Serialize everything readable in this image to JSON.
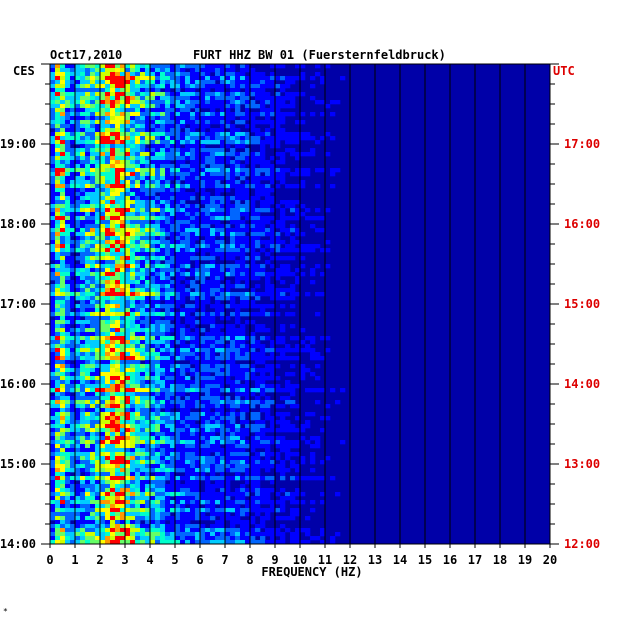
{
  "header": {
    "date": "Oct17,2010",
    "station": "FURT HHZ BW 01 (Fuersternfeldbruck)",
    "left_zone": "CES",
    "right_zone": "UTC"
  },
  "footnote": "*",
  "colors": {
    "background": "#0000a8",
    "grid": "#000000",
    "utc_labels": "#dd0000",
    "palette": [
      "#00009c",
      "#0000ff",
      "#0066ff",
      "#00ccff",
      "#00ffcc",
      "#66ff66",
      "#ccff00",
      "#ffff00",
      "#ff9900",
      "#ff0000"
    ]
  },
  "chart_data": {
    "type": "heatmap",
    "title": "FURT HHZ BW 01 (Fuersternfeldbruck)",
    "xlabel": "FREQUENCY (HZ)",
    "ylabel": "",
    "xlim": [
      0,
      20
    ],
    "x_ticks": [
      "0",
      "1",
      "2",
      "3",
      "4",
      "5",
      "6",
      "7",
      "8",
      "9",
      "10",
      "11",
      "12",
      "13",
      "14",
      "15",
      "16",
      "17",
      "18",
      "19",
      "20"
    ],
    "y_ticks_left": [
      "19:00",
      "18:00",
      "17:00",
      "16:00",
      "15:00",
      "14:00"
    ],
    "y_ticks_right": [
      "17:00",
      "16:00",
      "15:00",
      "14:00",
      "13:00",
      "12:00"
    ],
    "y_range_utc_hours": [
      12,
      18
    ],
    "grid": true,
    "energy_bands": [
      {
        "name": "band-0.4hz",
        "center_hz": 0.4,
        "width_hz": 0.3,
        "strength": 0.95
      },
      {
        "name": "band-1.5hz",
        "center_hz": 1.5,
        "width_hz": 0.8,
        "strength": 0.55
      },
      {
        "name": "band-2.7hz",
        "center_hz": 2.7,
        "width_hz": 0.6,
        "strength": 0.9
      },
      {
        "name": "band-3.5hz",
        "center_hz": 3.5,
        "width_hz": 1.5,
        "strength": 0.5
      },
      {
        "name": "band-6.5hz",
        "center_hz": 6.5,
        "width_hz": 2.5,
        "strength": 0.28
      },
      {
        "name": "band-10hz",
        "center_hz": 10.0,
        "width_hz": 3.0,
        "strength": 0.12
      }
    ]
  }
}
